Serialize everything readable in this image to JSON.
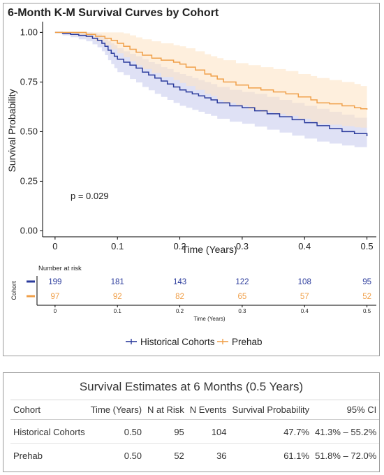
{
  "chart_data": {
    "type": "line",
    "step": true,
    "title": "6-Month K-M Survival Curves by Cohort",
    "xlabel": "Time (Years)",
    "ylabel": "Survival Probability",
    "xlim": [
      -0.02,
      0.515
    ],
    "ylim": [
      -0.03,
      1.04
    ],
    "xticks": [
      0,
      0.1,
      0.2,
      0.3,
      0.4,
      0.5
    ],
    "xtick_labels": [
      "0",
      "0.1",
      "0.2",
      "0.3",
      "0.4",
      "0.5"
    ],
    "yticks": [
      0,
      0.25,
      0.5,
      0.75,
      1.0
    ],
    "ytick_labels": [
      "0.00",
      "0.25",
      "0.50",
      "0.75",
      "1.00"
    ],
    "grid": false,
    "legend_position": "bottom",
    "annotation": "p = 0.029",
    "series": [
      {
        "name": "Historical Cohorts",
        "color": "#2b3b9c",
        "band_color": "#c9cdee",
        "x": [
          0,
          0.012,
          0.025,
          0.038,
          0.05,
          0.06,
          0.068,
          0.075,
          0.08,
          0.085,
          0.09,
          0.095,
          0.1,
          0.11,
          0.12,
          0.13,
          0.14,
          0.15,
          0.16,
          0.17,
          0.18,
          0.19,
          0.2,
          0.21,
          0.22,
          0.23,
          0.24,
          0.25,
          0.26,
          0.28,
          0.3,
          0.32,
          0.34,
          0.36,
          0.38,
          0.4,
          0.42,
          0.44,
          0.46,
          0.48,
          0.5
        ],
        "y": [
          1.0,
          0.995,
          0.99,
          0.985,
          0.98,
          0.97,
          0.96,
          0.945,
          0.93,
          0.91,
          0.895,
          0.88,
          0.865,
          0.85,
          0.835,
          0.82,
          0.8,
          0.785,
          0.77,
          0.755,
          0.74,
          0.725,
          0.71,
          0.7,
          0.69,
          0.68,
          0.67,
          0.66,
          0.645,
          0.63,
          0.62,
          0.605,
          0.59,
          0.575,
          0.56,
          0.545,
          0.53,
          0.515,
          0.5,
          0.49,
          0.477
        ],
        "lower": [
          1.0,
          0.985,
          0.976,
          0.965,
          0.955,
          0.94,
          0.925,
          0.905,
          0.885,
          0.86,
          0.84,
          0.82,
          0.8,
          0.785,
          0.765,
          0.748,
          0.725,
          0.708,
          0.69,
          0.675,
          0.66,
          0.645,
          0.63,
          0.62,
          0.61,
          0.6,
          0.59,
          0.58,
          0.565,
          0.55,
          0.54,
          0.525,
          0.51,
          0.495,
          0.48,
          0.465,
          0.45,
          0.44,
          0.43,
          0.422,
          0.413
        ],
        "upper": [
          1.0,
          1.0,
          1.0,
          1.0,
          1.0,
          0.995,
          0.99,
          0.98,
          0.97,
          0.955,
          0.945,
          0.935,
          0.92,
          0.905,
          0.892,
          0.88,
          0.865,
          0.85,
          0.84,
          0.825,
          0.815,
          0.8,
          0.79,
          0.78,
          0.77,
          0.76,
          0.75,
          0.74,
          0.725,
          0.71,
          0.7,
          0.69,
          0.675,
          0.66,
          0.645,
          0.63,
          0.615,
          0.6,
          0.585,
          0.57,
          0.552
        ]
      },
      {
        "name": "Prehab",
        "color": "#f0a04a",
        "band_color": "#fde5c6",
        "x": [
          0,
          0.03,
          0.05,
          0.065,
          0.08,
          0.09,
          0.1,
          0.11,
          0.12,
          0.13,
          0.14,
          0.155,
          0.17,
          0.19,
          0.2,
          0.21,
          0.225,
          0.24,
          0.25,
          0.26,
          0.27,
          0.29,
          0.31,
          0.33,
          0.35,
          0.37,
          0.39,
          0.41,
          0.42,
          0.44,
          0.46,
          0.48,
          0.49,
          0.5
        ],
        "y": [
          1.0,
          1.0,
          0.99,
          0.98,
          0.97,
          0.96,
          0.945,
          0.93,
          0.915,
          0.9,
          0.885,
          0.87,
          0.86,
          0.85,
          0.84,
          0.825,
          0.81,
          0.79,
          0.78,
          0.765,
          0.75,
          0.735,
          0.72,
          0.71,
          0.7,
          0.69,
          0.675,
          0.66,
          0.645,
          0.64,
          0.63,
          0.62,
          0.615,
          0.611
        ],
        "lower": [
          1.0,
          0.985,
          0.975,
          0.955,
          0.935,
          0.915,
          0.895,
          0.875,
          0.855,
          0.835,
          0.815,
          0.795,
          0.775,
          0.76,
          0.745,
          0.73,
          0.71,
          0.69,
          0.68,
          0.66,
          0.645,
          0.63,
          0.61,
          0.6,
          0.59,
          0.58,
          0.565,
          0.55,
          0.54,
          0.535,
          0.528,
          0.522,
          0.52,
          0.518
        ],
        "upper": [
          1.0,
          1.0,
          1.0,
          1.0,
          1.0,
          1.0,
          1.0,
          0.995,
          0.985,
          0.975,
          0.965,
          0.955,
          0.945,
          0.935,
          0.93,
          0.92,
          0.905,
          0.89,
          0.88,
          0.87,
          0.86,
          0.845,
          0.835,
          0.825,
          0.815,
          0.805,
          0.79,
          0.78,
          0.77,
          0.76,
          0.75,
          0.74,
          0.73,
          0.72
        ]
      }
    ],
    "risk_table": {
      "header": "Number at risk",
      "side_label": "Cohort",
      "xlabel": "Time (Years)",
      "times": [
        0,
        0.1,
        0.2,
        0.3,
        0.4,
        0.5
      ],
      "time_labels": [
        "0",
        "0.1",
        "0.2",
        "0.3",
        "0.4",
        "0.5"
      ],
      "rows": [
        {
          "name": "Historical Cohorts",
          "color": "#2b3b9c",
          "counts": [
            199,
            181,
            143,
            122,
            108,
            95
          ]
        },
        {
          "name": "Prehab",
          "color": "#f0a04a",
          "counts": [
            97,
            92,
            82,
            65,
            57,
            52
          ]
        }
      ]
    }
  },
  "estimates_table": {
    "title": "Survival Estimates at 6 Months (0.5 Years)",
    "headers": {
      "cohort": "Cohort",
      "time": "Time (Years)",
      "n_risk": "N at Risk",
      "n_events": "N Events",
      "survival": "Survival Probability",
      "ci": "95% CI"
    },
    "rows": [
      {
        "cohort": "Historical Cohorts",
        "time": "0.50",
        "n_risk": "95",
        "n_events": "104",
        "survival": "47.7%",
        "ci": "41.3% – 55.2%"
      },
      {
        "cohort": "Prehab",
        "time": "0.50",
        "n_risk": "52",
        "n_events": "36",
        "survival": "61.1%",
        "ci": "51.8% – 72.0%"
      }
    ]
  }
}
